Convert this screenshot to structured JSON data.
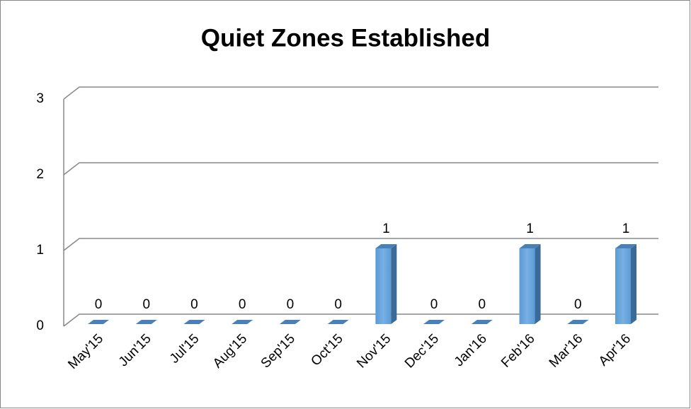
{
  "chart_data": {
    "type": "bar",
    "title": "Quiet Zones Established",
    "categories": [
      "May'15",
      "Jun'15",
      "Jul'15",
      "Aug'15",
      "Sep'15",
      "Oct'15",
      "Nov'15",
      "Dec'15",
      "Jan'16",
      "Feb'16",
      "Mar'16",
      "Apr'16"
    ],
    "values": [
      0,
      0,
      0,
      0,
      0,
      0,
      1,
      0,
      0,
      1,
      0,
      1
    ],
    "color": "#5b9bd5",
    "ylim": [
      0,
      3
    ],
    "yticks": [
      0,
      1,
      2,
      3
    ],
    "grid": true
  }
}
